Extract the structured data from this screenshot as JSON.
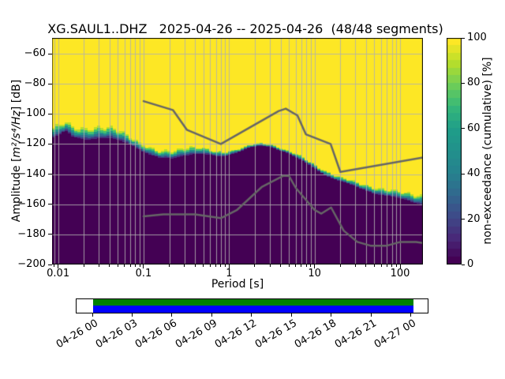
{
  "title": "XG.SAUL1..DHZ   2025-04-26 -- 2025-04-26  (48/48 segments)",
  "axes": {
    "xlabel": "Period [s]",
    "ylabel_pre": "Amplitude [",
    "ylabel_math": "m²/s⁴/Hz",
    "ylabel_post": "] [dB]",
    "x_tick_values": [
      0.01,
      0.1,
      1,
      10,
      100
    ],
    "x_tick_labels": [
      "0.01",
      "0.1",
      "1",
      "10",
      "100"
    ],
    "y_tick_values": [
      -60,
      -80,
      -100,
      -120,
      -140,
      -160,
      -180,
      -200
    ],
    "y_tick_labels": [
      "−60",
      "−80",
      "−100",
      "−120",
      "−140",
      "−160",
      "−180",
      "−200"
    ]
  },
  "colorbar": {
    "label": "non-exceedance (cumulative) [%]",
    "tick_values": [
      0,
      20,
      40,
      60,
      80,
      100
    ],
    "tick_labels": [
      "0",
      "20",
      "40",
      "60",
      "80",
      "100"
    ],
    "steps": 30
  },
  "timeline": {
    "tick_labels": [
      "04-26 00",
      "04-26 03",
      "04-26 06",
      "04-26 09",
      "04-26 12",
      "04-26 15",
      "04-26 18",
      "04-26 21",
      "04-27 00"
    ],
    "coverage_top_color": "#008000",
    "coverage_bottom_color": "#0000ff"
  },
  "chart_data": {
    "type": "heatmap",
    "title": "XG.SAUL1..DHZ   2025-04-26 -- 2025-04-26  (48/48 segments)",
    "xlabel": "Period [s]",
    "ylabel": "Amplitude [m2/s4/Hz] [dB]",
    "x_scale": "log",
    "xlim": [
      0.0085,
      185
    ],
    "ylim": [
      -200,
      -49.5
    ],
    "colorbar_label": "non-exceedance (cumulative) [%]",
    "colorbar_range": [
      0,
      100
    ],
    "colormap": "viridis",
    "viridis_stops": [
      "#440154",
      "#482878",
      "#3e4a89",
      "#31688e",
      "#26828e",
      "#21918c",
      "#1f9e89",
      "#35b779",
      "#6ece58",
      "#b5de2b",
      "#fde725"
    ],
    "color_low": "#440154",
    "color_high": "#fde725",
    "grid_color": "#b0b0b0",
    "noise_model_color": "#666666",
    "psd_mode_curve": {
      "comment_periods_s": [
        0.0085,
        0.0105,
        0.0123,
        0.015,
        0.02,
        0.028,
        0.04,
        0.055,
        0.07,
        0.09,
        0.12,
        0.16,
        0.22,
        0.3,
        0.42,
        0.55,
        0.7,
        0.9,
        1.2,
        1.7,
        2.4,
        3.2,
        4.5,
        6.0,
        8.0,
        11,
        15,
        21,
        30,
        45,
        65,
        90,
        130,
        185
      ],
      "db": [
        -116,
        -114,
        -111.5,
        -115.5,
        -116.5,
        -116,
        -116.5,
        -118,
        -120,
        -123,
        -127.5,
        -130,
        -129.5,
        -127,
        -126.5,
        -127.5,
        -128.5,
        -127.5,
        -125.5,
        -123,
        -121.5,
        -122,
        -125,
        -129,
        -133,
        -137.5,
        -141.5,
        -145.5,
        -148.5,
        -151.5,
        -154,
        -156,
        -158,
        -159.5
      ],
      "spread_db": [
        7,
        7,
        7,
        7,
        7.5,
        8,
        8,
        7,
        6,
        5,
        5,
        5,
        5.5,
        5.5,
        5,
        4,
        3.5,
        3,
        2.5,
        2,
        2,
        2,
        2,
        2.5,
        2.5,
        3,
        3,
        3,
        3.5,
        4,
        4.5,
        5,
        5.5,
        6
      ]
    },
    "noise_models": {
      "nhnm": [
        [
          0.1,
          -91.5
        ],
        [
          0.22,
          -97.4
        ],
        [
          0.32,
          -110.5
        ],
        [
          0.8,
          -120.0
        ],
        [
          3.8,
          -98.1
        ],
        [
          4.6,
          -96.5
        ],
        [
          6.3,
          -101.0
        ],
        [
          7.9,
          -113.5
        ],
        [
          15.4,
          -120.0
        ],
        [
          20.0,
          -138.5
        ],
        [
          185.0,
          -128.9
        ]
      ],
      "nlnm": [
        [
          0.1,
          -168.0
        ],
        [
          0.17,
          -166.7
        ],
        [
          0.4,
          -166.7
        ],
        [
          0.8,
          -169.2
        ],
        [
          1.24,
          -163.7
        ],
        [
          2.4,
          -148.6
        ],
        [
          4.3,
          -141.1
        ],
        [
          5.0,
          -141.1
        ],
        [
          6.0,
          -149.0
        ],
        [
          10.0,
          -163.8
        ],
        [
          12.0,
          -166.2
        ],
        [
          15.6,
          -162.1
        ],
        [
          21.9,
          -177.5
        ],
        [
          31.6,
          -185.0
        ],
        [
          45.0,
          -187.5
        ],
        [
          70.0,
          -187.5
        ],
        [
          101.0,
          -185.0
        ],
        [
          154.0,
          -185.0
        ],
        [
          185.0,
          -185.7
        ]
      ]
    }
  }
}
